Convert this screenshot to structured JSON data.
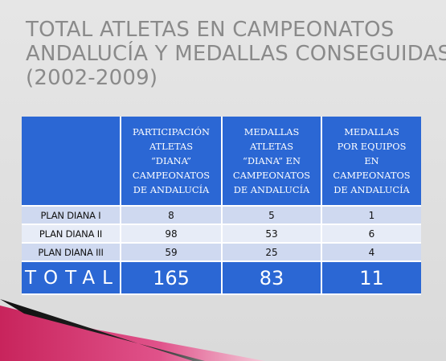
{
  "slide": {
    "title_line1": "TOTAL ATLETAS EN CAMPEONATOS",
    "title_line2": "ANDALUCÍA Y MEDALLAS CONSEGUIDAS",
    "title_line3": "(2002-2009)"
  },
  "table": {
    "headers": [
      "",
      "PARTICIPACIÓN ATLETAS “DIANA” CAMPEONATOS DE ANDALUCÍA",
      "MEDALLAS ATLETAS “DIANA” EN CAMPEONATOS DE ANDALUCÍA",
      "MEDALLAS POR EQUIPOS EN CAMPEONATOS DE ANDALUCÍA"
    ],
    "header_lines": [
      [],
      [
        "PARTICIPACIÓN",
        "ATLETAS",
        "“DIANA”",
        "CAMPEONATOS",
        "DE ANDALUCÍA"
      ],
      [
        "MEDALLAS",
        "ATLETAS",
        "“DIANA” EN",
        "CAMPEONATOS",
        "DE ANDALUCÍA"
      ],
      [
        "MEDALLAS",
        "POR EQUIPOS",
        "EN",
        "CAMPEONATOS",
        "DE ANDALUCÍA"
      ]
    ],
    "rows": [
      {
        "label": "PLAN DIANA I",
        "participacion": "8",
        "medallas_atletas": "5",
        "medallas_equipos": "1"
      },
      {
        "label": "PLAN DIANA II",
        "participacion": "98",
        "medallas_atletas": "53",
        "medallas_equipos": "6"
      },
      {
        "label": "PLAN DIANA III",
        "participacion": "59",
        "medallas_atletas": "25",
        "medallas_equipos": "4"
      }
    ],
    "total": {
      "label": "TOTAL",
      "participacion": "165",
      "medallas_atletas": "83",
      "medallas_equipos": "11"
    }
  },
  "colors": {
    "header_blue": "#2b67d4",
    "row_light": "#cfd9f0",
    "row_lighter": "#e7ecf7",
    "title_gray": "#8a8a8a",
    "accent_pink": "#d6336c"
  }
}
